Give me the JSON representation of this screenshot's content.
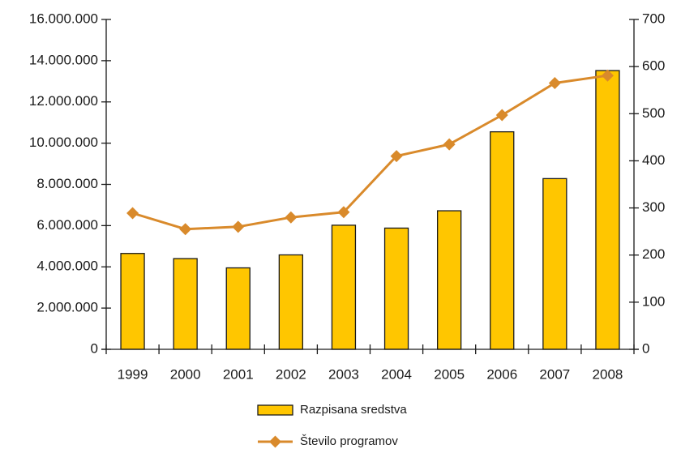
{
  "chart_data": {
    "type": "bar",
    "categories": [
      "1999",
      "2000",
      "2001",
      "2002",
      "2003",
      "2004",
      "2005",
      "2006",
      "2007",
      "2008"
    ],
    "series": [
      {
        "name": "Razpisana sredstva",
        "type": "bar",
        "axis": "left",
        "color": "#FFC600",
        "values": [
          4650000,
          4400000,
          3950000,
          4580000,
          6020000,
          5880000,
          6720000,
          10550000,
          8280000,
          13520000
        ]
      },
      {
        "name": "Število programov",
        "type": "line",
        "axis": "right",
        "color": "#D98A2B",
        "values": [
          289,
          255,
          260,
          280,
          291,
          410,
          435,
          497,
          565,
          581
        ]
      }
    ],
    "y_left": {
      "ylim": [
        0,
        16000000
      ],
      "ticks": [
        0,
        2000000,
        4000000,
        6000000,
        8000000,
        10000000,
        12000000,
        14000000,
        16000000
      ],
      "tick_labels": [
        "0",
        "2.000.000",
        "4.000.000",
        "6.000.000",
        "8.000.000",
        "10.000.000",
        "12.000.000",
        "14.000.000",
        "16.000.000"
      ]
    },
    "y_right": {
      "ylim": [
        0,
        700
      ],
      "ticks": [
        0,
        100,
        200,
        300,
        400,
        500,
        600,
        700
      ],
      "tick_labels": [
        "0",
        "100",
        "200",
        "300",
        "400",
        "500",
        "600",
        "700"
      ]
    },
    "grid": false,
    "legend": "bottom-center",
    "title": "",
    "xlabel": "",
    "ylabel": ""
  }
}
